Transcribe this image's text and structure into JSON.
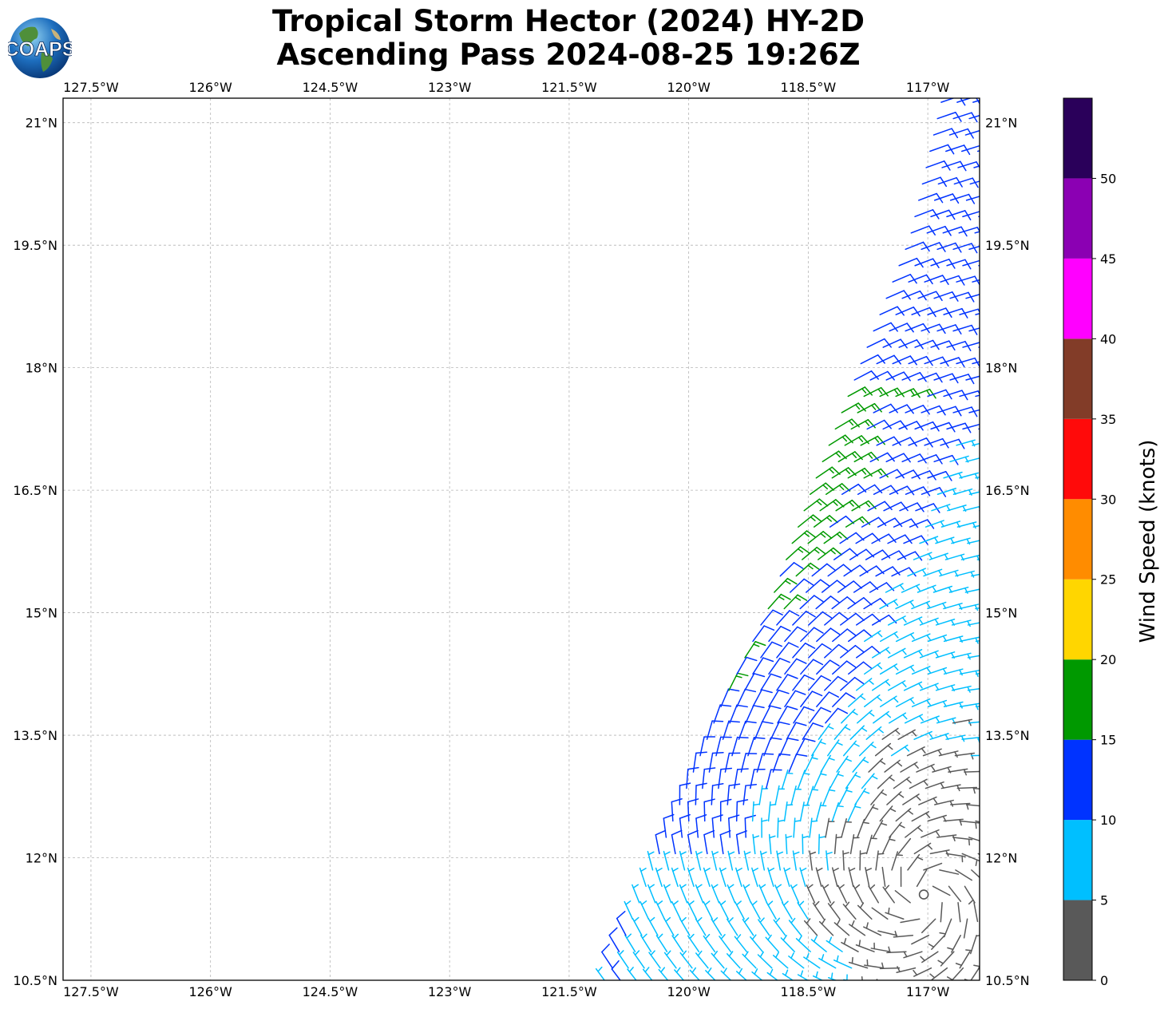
{
  "header": {
    "title_line1": "Tropical Storm Hector (2024) HY-2D",
    "title_line2": "Ascending Pass 2024-08-25 19:26Z",
    "logo_text": "COAPS"
  },
  "map": {
    "lon_range": [
      -127.85,
      -116.35
    ],
    "lat_range": [
      10.5,
      21.3
    ],
    "lon_ticks": [
      "127.5°W",
      "126°W",
      "124.5°W",
      "123°W",
      "121.5°W",
      "120°W",
      "118.5°W",
      "117°W"
    ],
    "lon_tick_values": [
      -127.5,
      -126,
      -124.5,
      -123,
      -121.5,
      -120,
      -118.5,
      -117
    ],
    "lat_ticks": [
      "10.5°N",
      "12°N",
      "13.5°N",
      "15°N",
      "16.5°N",
      "18°N",
      "19.5°N",
      "21°N"
    ],
    "lat_tick_values": [
      10.5,
      12,
      13.5,
      15,
      16.5,
      18,
      19.5,
      21
    ],
    "grid": true,
    "storm_center": {
      "lon": -117.05,
      "lat": 11.55,
      "marker": "circle"
    },
    "swath_left_edge": [
      [
        -121.1,
        10.5
      ],
      [
        -120.3,
        12.4
      ],
      [
        -119.7,
        13.8
      ],
      [
        -119.1,
        15.0
      ],
      [
        -118.5,
        16.6
      ],
      [
        -117.3,
        19.6
      ],
      [
        -116.9,
        21.3
      ]
    ]
  },
  "colorbar": {
    "label": "Wind Speed (knots)",
    "bounds": [
      0,
      5,
      10,
      15,
      20,
      25,
      30,
      35,
      40,
      45,
      50,
      55
    ],
    "tick_labels": [
      "0",
      "5",
      "10",
      "15",
      "20",
      "25",
      "30",
      "35",
      "40",
      "45",
      "50"
    ],
    "colors": [
      "#595959",
      "#00bfff",
      "#0033ff",
      "#009900",
      "#ffd600",
      "#ff8c00",
      "#ff0a0a",
      "#823c28",
      "#ff00ff",
      "#8b00b3",
      "#2a005a"
    ]
  }
}
